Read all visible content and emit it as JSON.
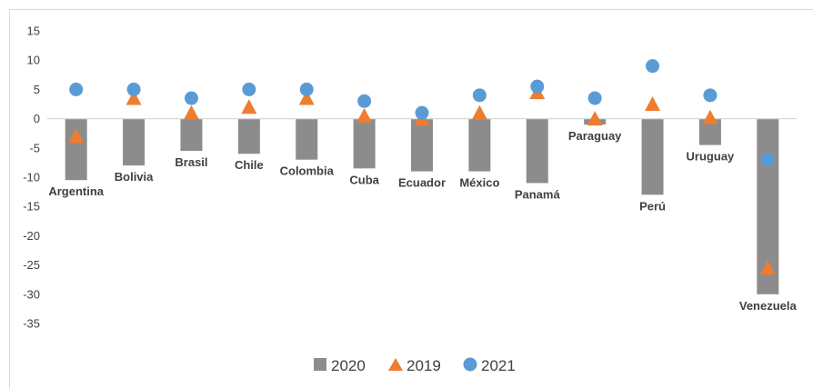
{
  "chart_data": {
    "type": "bar",
    "categories": [
      "Argentina",
      "Bolivia",
      "Brasil",
      "Chile",
      "Colombia",
      "Cuba",
      "Ecuador",
      "México",
      "Panamá",
      "Paraguay",
      "Perú",
      "Uruguay",
      "Venezuela"
    ],
    "series": [
      {
        "name": "2020",
        "marker": "bar",
        "color": "#8c8c8c",
        "values": [
          -10.5,
          -8,
          -5.5,
          -6,
          -7,
          -8.5,
          -9,
          -9,
          -11,
          -1,
          -13,
          -4.5,
          -30
        ]
      },
      {
        "name": "2019",
        "marker": "triangle",
        "color": "#ed7d31",
        "values": [
          -3,
          3.5,
          1,
          2,
          3.5,
          0.5,
          0,
          1,
          4.5,
          0,
          2.5,
          0.2,
          -25.5
        ]
      },
      {
        "name": "2021",
        "marker": "circle",
        "color": "#5b9bd5",
        "values": [
          5,
          5,
          3.5,
          5,
          5,
          3,
          1,
          4,
          5.5,
          3.5,
          9,
          4,
          -7
        ]
      }
    ],
    "ylim": [
      -35,
      15
    ],
    "yticks": [
      15,
      10,
      5,
      0,
      -5,
      -10,
      -15,
      -20,
      -25,
      -30,
      -35
    ],
    "grid": false,
    "legend": "bottom"
  }
}
